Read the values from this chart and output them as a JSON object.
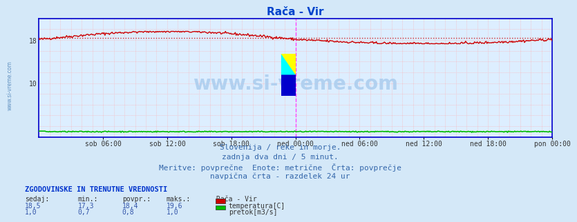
{
  "title": "Rača - Vir",
  "bg_color": "#d4e8f8",
  "plot_bg_color": "#ddeeff",
  "border_color": "#0000cc",
  "grid_color": "#ffaaaa",
  "grid_style": "dotted",
  "x_tick_labels": [
    "sob 06:00",
    "sob 12:00",
    "sob 18:00",
    "ned 00:00",
    "ned 06:00",
    "ned 12:00",
    "ned 18:00",
    "pon 00:00"
  ],
  "x_tick_positions": [
    0.125,
    0.25,
    0.375,
    0.5,
    0.625,
    0.75,
    0.875,
    1.0
  ],
  "vline_color": "#ff44ff",
  "vline_positions": [
    0.5,
    1.0
  ],
  "ylim": [
    0,
    22
  ],
  "yticks": [
    10,
    18
  ],
  "temp_color": "#cc0000",
  "flow_color": "#00bb00",
  "avg_value": 18.4,
  "avg_color": "#cc0000",
  "title_color": "#0044cc",
  "title_fontsize": 11,
  "watermark": "www.si-vreme.com",
  "watermark_color": "#aaccee",
  "watermark_fontsize": 20,
  "subtitle_lines": [
    "Slovenija / reke in morje.",
    "zadnja dva dni / 5 minut.",
    "Meritve: povprečne  Enote: metrične  Črta: povprečje",
    "navpična črta - razdelek 24 ur"
  ],
  "subtitle_color": "#3366aa",
  "subtitle_fontsize": 8,
  "legend_title": "Rača - Vir",
  "legend_items": [
    {
      "label": "temperatura[C]",
      "color": "#cc0000"
    },
    {
      "label": "pretok[m3/s]",
      "color": "#00bb00"
    }
  ],
  "stats_header": "ZGODOVINSKE IN TRENUTNE VREDNOSTI",
  "stats_cols": [
    "sedaj:",
    "min.:",
    "povpr.:",
    "maks.:"
  ],
  "stats_temp": [
    18.5,
    17.3,
    18.4,
    19.6
  ],
  "stats_flow": [
    1.0,
    0.7,
    0.8,
    1.0
  ],
  "n_points": 576
}
